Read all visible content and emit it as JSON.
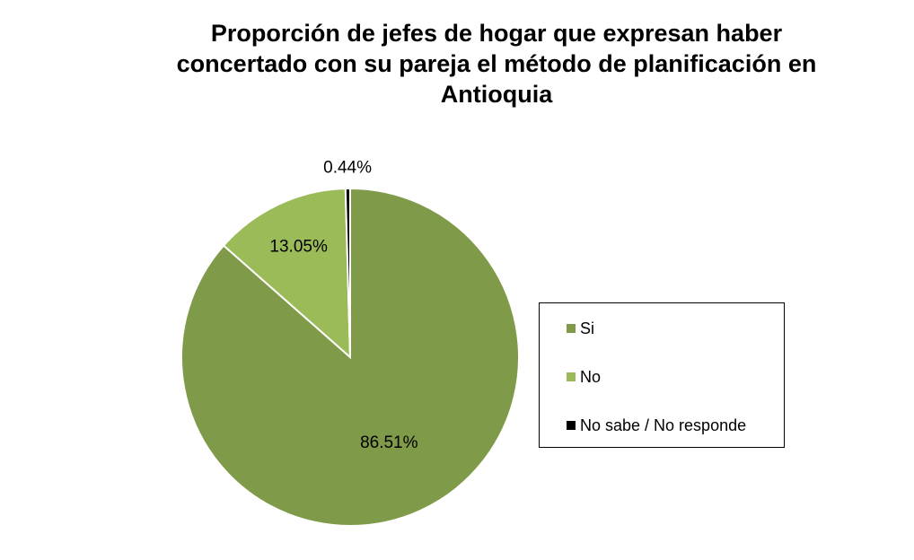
{
  "chart_data": {
    "type": "pie",
    "title": "Proporción de jefes de hogar que expresan haber concertado con su pareja el método de planificación en Antioquia",
    "title_lines": [
      "Proporción de jefes de hogar que expresan haber",
      "concertado con su pareja el método de planificación en",
      "Antioquia"
    ],
    "categories": [
      "Si",
      "No",
      "No sabe / No responde"
    ],
    "values": [
      86.51,
      13.05,
      0.44
    ],
    "data_labels": [
      "86.51%",
      "13.05%",
      "0.44%"
    ],
    "colors": [
      "#7f9a48",
      "#9bbb59",
      "#000000"
    ],
    "legend_position": "right"
  }
}
